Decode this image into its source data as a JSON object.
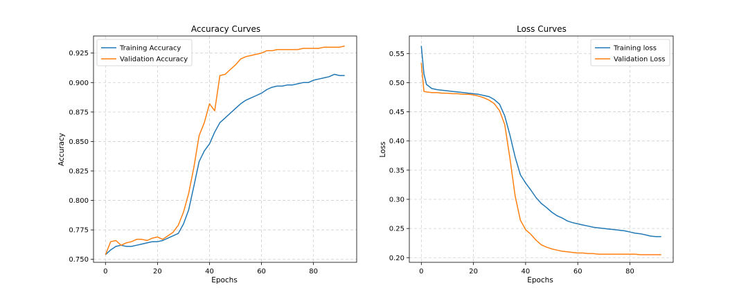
{
  "chart_data": [
    {
      "type": "line",
      "title": "Accuracy Curves",
      "xlabel": "Epochs",
      "ylabel": "Accuracy",
      "xlim": [
        -4.6,
        96.6
      ],
      "ylim": [
        0.7475,
        0.9395
      ],
      "xticks": [
        0,
        20,
        40,
        60,
        80
      ],
      "yticks": [
        0.75,
        0.775,
        0.8,
        0.825,
        0.85,
        0.875,
        0.9,
        0.925
      ],
      "ytick_labels": [
        "0.750",
        "0.775",
        "0.800",
        "0.825",
        "0.850",
        "0.875",
        "0.900",
        "0.925"
      ],
      "grid": true,
      "legend_position": "upper left",
      "series": [
        {
          "name": "Training Accuracy",
          "color": "#1f77b4",
          "x": [
            0,
            2,
            4,
            6,
            8,
            10,
            12,
            14,
            16,
            18,
            20,
            22,
            24,
            26,
            28,
            30,
            32,
            34,
            36,
            38,
            40,
            42,
            44,
            46,
            48,
            50,
            52,
            54,
            56,
            58,
            60,
            62,
            64,
            66,
            68,
            70,
            72,
            74,
            76,
            78,
            80,
            82,
            84,
            86,
            88,
            90,
            92
          ],
          "y": [
            0.754,
            0.758,
            0.761,
            0.762,
            0.761,
            0.761,
            0.762,
            0.763,
            0.764,
            0.765,
            0.765,
            0.766,
            0.768,
            0.77,
            0.772,
            0.78,
            0.792,
            0.812,
            0.833,
            0.842,
            0.848,
            0.858,
            0.866,
            0.87,
            0.874,
            0.878,
            0.882,
            0.885,
            0.887,
            0.889,
            0.891,
            0.894,
            0.896,
            0.897,
            0.897,
            0.898,
            0.898,
            0.899,
            0.9,
            0.9,
            0.902,
            0.903,
            0.904,
            0.905,
            0.907,
            0.906,
            0.906
          ]
        },
        {
          "name": "Validation Accuracy",
          "color": "#ff7f0e",
          "x": [
            0,
            2,
            4,
            6,
            8,
            10,
            12,
            14,
            16,
            18,
            20,
            22,
            24,
            26,
            28,
            30,
            32,
            34,
            36,
            38,
            40,
            42,
            44,
            46,
            48,
            50,
            52,
            54,
            56,
            58,
            60,
            62,
            64,
            66,
            68,
            70,
            72,
            74,
            76,
            78,
            80,
            82,
            84,
            86,
            88,
            90,
            92
          ],
          "y": [
            0.754,
            0.765,
            0.766,
            0.762,
            0.764,
            0.765,
            0.767,
            0.767,
            0.766,
            0.768,
            0.769,
            0.767,
            0.77,
            0.773,
            0.779,
            0.79,
            0.806,
            0.828,
            0.855,
            0.866,
            0.882,
            0.876,
            0.906,
            0.907,
            0.911,
            0.915,
            0.92,
            0.922,
            0.923,
            0.924,
            0.925,
            0.927,
            0.927,
            0.928,
            0.928,
            0.928,
            0.928,
            0.928,
            0.929,
            0.929,
            0.929,
            0.929,
            0.93,
            0.93,
            0.93,
            0.93,
            0.931
          ]
        }
      ]
    },
    {
      "type": "line",
      "title": "Loss Curves",
      "xlabel": "Epochs",
      "ylabel": "Loss",
      "xlim": [
        -4.6,
        96.6
      ],
      "ylim": [
        0.192,
        0.58
      ],
      "xticks": [
        0,
        20,
        40,
        60,
        80
      ],
      "yticks": [
        0.2,
        0.25,
        0.3,
        0.35,
        0.4,
        0.45,
        0.5,
        0.55
      ],
      "ytick_labels": [
        "0.20",
        "0.25",
        "0.30",
        "0.35",
        "0.40",
        "0.45",
        "0.50",
        "0.55"
      ],
      "grid": true,
      "legend_position": "upper right",
      "series": [
        {
          "name": "Training loss",
          "color": "#1f77b4",
          "x": [
            0,
            1,
            2,
            4,
            6,
            8,
            10,
            12,
            14,
            16,
            18,
            20,
            22,
            24,
            26,
            28,
            30,
            32,
            34,
            36,
            38,
            40,
            42,
            44,
            46,
            48,
            50,
            52,
            54,
            56,
            58,
            60,
            62,
            64,
            66,
            68,
            70,
            72,
            74,
            76,
            78,
            80,
            82,
            84,
            86,
            88,
            90,
            92
          ],
          "y": [
            0.563,
            0.515,
            0.497,
            0.49,
            0.488,
            0.487,
            0.486,
            0.485,
            0.484,
            0.483,
            0.482,
            0.481,
            0.48,
            0.478,
            0.476,
            0.471,
            0.463,
            0.443,
            0.41,
            0.372,
            0.342,
            0.328,
            0.316,
            0.303,
            0.293,
            0.286,
            0.278,
            0.272,
            0.268,
            0.263,
            0.26,
            0.258,
            0.256,
            0.254,
            0.252,
            0.251,
            0.25,
            0.249,
            0.248,
            0.247,
            0.246,
            0.244,
            0.242,
            0.241,
            0.239,
            0.237,
            0.236,
            0.236
          ]
        },
        {
          "name": "Validation Loss",
          "color": "#ff7f0e",
          "x": [
            0,
            1,
            2,
            4,
            6,
            8,
            10,
            12,
            14,
            16,
            18,
            20,
            22,
            24,
            26,
            28,
            30,
            32,
            34,
            36,
            38,
            40,
            42,
            44,
            46,
            48,
            50,
            52,
            54,
            56,
            58,
            60,
            62,
            64,
            66,
            68,
            70,
            72,
            74,
            76,
            78,
            80,
            82,
            84,
            86,
            88,
            90,
            92
          ],
          "y": [
            0.534,
            0.485,
            0.484,
            0.483,
            0.483,
            0.482,
            0.482,
            0.481,
            0.481,
            0.48,
            0.48,
            0.479,
            0.477,
            0.474,
            0.47,
            0.464,
            0.452,
            0.428,
            0.37,
            0.305,
            0.264,
            0.248,
            0.24,
            0.23,
            0.222,
            0.218,
            0.215,
            0.213,
            0.211,
            0.21,
            0.209,
            0.208,
            0.208,
            0.207,
            0.207,
            0.206,
            0.206,
            0.206,
            0.206,
            0.206,
            0.206,
            0.206,
            0.206,
            0.205,
            0.205,
            0.205,
            0.205,
            0.205
          ]
        }
      ]
    }
  ]
}
